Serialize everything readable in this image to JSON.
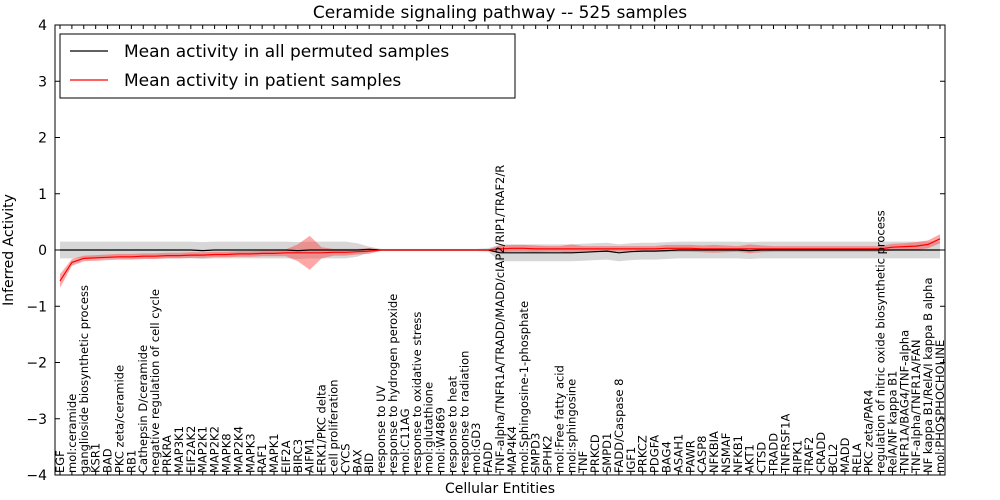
{
  "chart_data": {
    "type": "line",
    "title": "Ceramide signaling pathway -- 525 samples",
    "xlabel": "Cellular Entities",
    "ylabel": "Inferred Activity",
    "ylim": [
      -4,
      4
    ],
    "yticks": [
      -4,
      -3,
      -2,
      -1,
      0,
      1,
      2,
      3,
      4
    ],
    "legend_position": "top-left",
    "categories": [
      "EGF",
      "mol:ceramide",
      "ganglioside biosynthetic process",
      "KSR1",
      "BAD",
      "PKC zeta/ceramide",
      "RB1",
      "Cathepsin D/ceramide",
      "negative regulation of cell cycle",
      "PRKRA",
      "MAP3K1",
      "EIF2AK2",
      "MAP2K1",
      "MAP2K2",
      "MAPK8",
      "MAP2K4",
      "MAPK3",
      "RAF1",
      "MAPK1",
      "EIF2A",
      "BIRC3",
      "AIFM1",
      "ERK1/PKC delta",
      "cell proliferation",
      "CYCS",
      "BAX",
      "BID",
      "response to UV",
      "response to hydrogen peroxide",
      "mol:C11AG",
      "response to oxidative stress",
      "mol:glutathione",
      "mol:W4869",
      "response to heat",
      "response to radiation",
      "mol:GD3",
      "FADD",
      "TNF-alpha/TNFR1A/TRADD/MADD/cIAP2/RIP1/TRAF2/R",
      "MAP4K4",
      "mol:Sphingosine-1-phosphate",
      "SMPD3",
      "SPHK2",
      "mol:Free fatty acid",
      "mol:sphingosine",
      "TNF",
      "PRKCD",
      "SMPD1",
      "FADD/Caspase 8",
      "IGF1",
      "PRKCZ",
      "PDGFA",
      "BAG4",
      "ASAH1",
      "PAWR",
      "CASP8",
      "NFKBIA",
      "NSMAF",
      "NFKB1",
      "AKT1",
      "CTSD",
      "TRADD",
      "TNFRSF1A",
      "RIPK1",
      "TRAF2",
      "CRADD",
      "BCL2",
      "MADD",
      "RELA",
      "PKC zeta/PAR4",
      "regulation of nitric oxide biosynthetic process",
      "RelA/NF kappa B1",
      "TNFR1A/BAG4/TNF-alpha",
      "TNF-alpha/TNFR1A/FAN",
      "NF kappa B1/RelA/I kappa B alpha",
      "mol:PHOSPHOCHOLINE"
    ],
    "series": [
      {
        "name": "Mean activity in all permuted samples",
        "color": "#000000",
        "values": [
          0.0,
          0.0,
          0.0,
          0.0,
          0.0,
          0.0,
          0.0,
          0.0,
          0.0,
          0.0,
          0.0,
          0.0,
          -0.01,
          0.0,
          0.0,
          0.0,
          0.0,
          0.0,
          0.0,
          0.0,
          -0.01,
          0.0,
          0.0,
          0.0,
          0.0,
          0.0,
          0.01,
          0.0,
          0.0,
          0.0,
          0.0,
          0.0,
          0.0,
          0.0,
          0.0,
          0.0,
          0.0,
          -0.05,
          -0.05,
          -0.05,
          -0.05,
          -0.05,
          -0.05,
          -0.05,
          -0.04,
          -0.03,
          -0.02,
          -0.05,
          -0.03,
          -0.02,
          -0.02,
          -0.01,
          0.0,
          0.0,
          0.0,
          0.0,
          0.0,
          0.0,
          -0.01,
          0.0,
          0.0,
          0.0,
          0.0,
          0.0,
          0.0,
          0.0,
          0.0,
          0.0,
          0.0,
          0.0,
          0.0,
          0.0,
          0.0,
          0.0,
          0.0
        ],
        "band": [
          0.15,
          0.15,
          0.15,
          0.15,
          0.15,
          0.15,
          0.15,
          0.15,
          0.15,
          0.15,
          0.15,
          0.15,
          0.15,
          0.15,
          0.15,
          0.15,
          0.15,
          0.15,
          0.15,
          0.15,
          0.15,
          0.15,
          0.15,
          0.15,
          0.15,
          0.12,
          0.05,
          0.02,
          0.02,
          0.02,
          0.02,
          0.02,
          0.02,
          0.02,
          0.02,
          0.02,
          0.03,
          0.15,
          0.15,
          0.15,
          0.15,
          0.15,
          0.15,
          0.15,
          0.15,
          0.15,
          0.15,
          0.15,
          0.15,
          0.15,
          0.15,
          0.15,
          0.15,
          0.15,
          0.15,
          0.15,
          0.15,
          0.15,
          0.15,
          0.15,
          0.15,
          0.15,
          0.15,
          0.15,
          0.15,
          0.15,
          0.15,
          0.15,
          0.15,
          0.15,
          0.15,
          0.15,
          0.15,
          0.15,
          0.15
        ]
      },
      {
        "name": "Mean activity in patient samples",
        "color": "#ff0000",
        "values": [
          -0.55,
          -0.22,
          -0.15,
          -0.14,
          -0.13,
          -0.12,
          -0.12,
          -0.11,
          -0.11,
          -0.1,
          -0.1,
          -0.09,
          -0.09,
          -0.08,
          -0.08,
          -0.07,
          -0.07,
          -0.06,
          -0.06,
          -0.05,
          -0.05,
          -0.05,
          -0.05,
          -0.04,
          -0.04,
          -0.03,
          -0.02,
          0.0,
          0.0,
          0.0,
          0.0,
          0.0,
          0.0,
          0.0,
          0.0,
          0.0,
          0.0,
          0.02,
          0.03,
          0.03,
          0.02,
          0.02,
          0.02,
          0.02,
          0.02,
          0.02,
          0.02,
          0.02,
          0.02,
          0.02,
          0.02,
          0.03,
          0.03,
          0.03,
          0.02,
          0.02,
          0.02,
          0.02,
          0.02,
          0.02,
          0.02,
          0.02,
          0.02,
          0.02,
          0.02,
          0.02,
          0.02,
          0.02,
          0.02,
          0.02,
          0.05,
          0.06,
          0.07,
          0.1,
          0.2
        ],
        "band": [
          0.12,
          0.06,
          0.05,
          0.05,
          0.05,
          0.05,
          0.05,
          0.05,
          0.05,
          0.05,
          0.05,
          0.05,
          0.05,
          0.05,
          0.05,
          0.05,
          0.05,
          0.05,
          0.05,
          0.06,
          0.15,
          0.3,
          0.1,
          0.06,
          0.06,
          0.05,
          0.05,
          0.01,
          0.01,
          0.01,
          0.01,
          0.01,
          0.01,
          0.01,
          0.01,
          0.01,
          0.01,
          0.06,
          0.06,
          0.06,
          0.06,
          0.05,
          0.05,
          0.08,
          0.05,
          0.05,
          0.05,
          0.05,
          0.05,
          0.05,
          0.05,
          0.06,
          0.06,
          0.06,
          0.06,
          0.07,
          0.06,
          0.05,
          0.08,
          0.06,
          0.05,
          0.05,
          0.05,
          0.05,
          0.05,
          0.05,
          0.05,
          0.05,
          0.05,
          0.05,
          0.06,
          0.06,
          0.07,
          0.07,
          0.08
        ]
      }
    ]
  }
}
